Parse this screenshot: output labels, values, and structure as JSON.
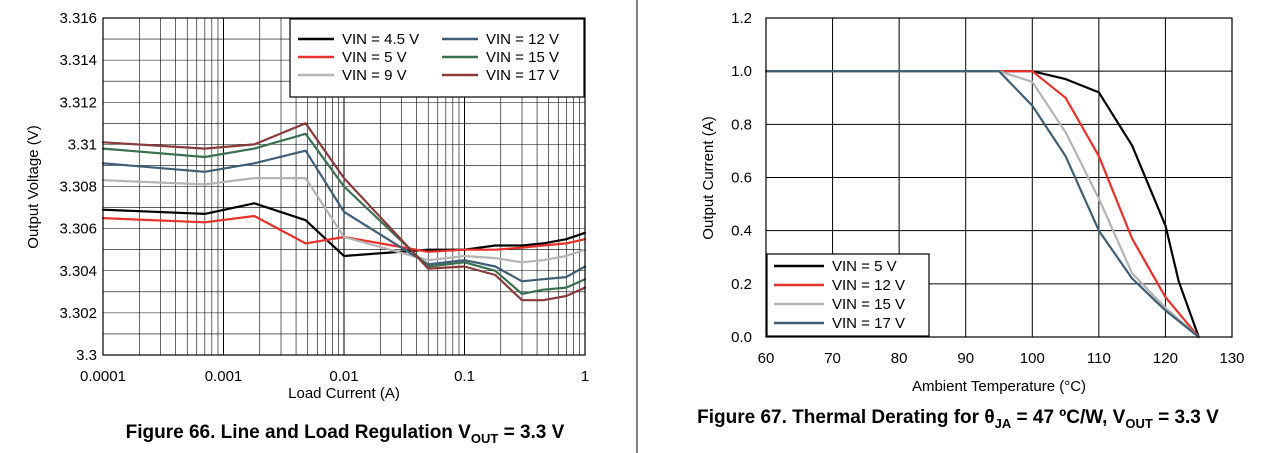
{
  "chart_data": [
    {
      "type": "line",
      "xscale": "log",
      "x": [
        0.0001,
        0.0007,
        0.0018,
        0.0048,
        0.01,
        0.05,
        0.1,
        0.18,
        0.3,
        0.45,
        0.7,
        1.0
      ],
      "series": [
        {
          "name": "VIN = 4.5 V",
          "color": "#000000",
          "values": [
            3.3069,
            3.3067,
            3.3072,
            3.3064,
            3.3047,
            3.305,
            3.305,
            3.3052,
            3.3052,
            3.3053,
            3.3055,
            3.3058
          ]
        },
        {
          "name": "VIN = 5 V",
          "color": "#e8312a",
          "values": [
            3.3065,
            3.3063,
            3.3066,
            3.3053,
            3.3056,
            3.3049,
            3.305,
            3.305,
            3.3051,
            3.3052,
            3.3053,
            3.3055
          ]
        },
        {
          "name": "VIN = 9 V",
          "color": "#b4b4b4",
          "values": [
            3.3083,
            3.3081,
            3.3084,
            3.3084,
            3.3056,
            3.3045,
            3.3047,
            3.3046,
            3.3044,
            3.3045,
            3.3047,
            3.305
          ]
        },
        {
          "name": "VIN = 12 V",
          "color": "#3f5f78",
          "values": [
            3.3091,
            3.3087,
            3.3091,
            3.3097,
            3.3068,
            3.3043,
            3.3045,
            3.3042,
            3.3035,
            3.3036,
            3.3037,
            3.3042
          ]
        },
        {
          "name": "VIN = 15 V",
          "color": "#3a7050",
          "values": [
            3.3098,
            3.3094,
            3.3098,
            3.3105,
            3.308,
            3.3042,
            3.3044,
            3.304,
            3.3029,
            3.3031,
            3.3032,
            3.3036
          ]
        },
        {
          "name": "VIN = 17 V",
          "color": "#8b3a3a",
          "values": [
            3.3101,
            3.3098,
            3.31,
            3.311,
            3.3084,
            3.3041,
            3.3042,
            3.3038,
            3.3026,
            3.3026,
            3.3028,
            3.3032
          ]
        }
      ],
      "xlabel": "Load Current (A)",
      "ylabel": "Output Voltage (V)",
      "xlim": [
        0.0001,
        1
      ],
      "ylim": [
        3.3,
        3.316
      ],
      "xticks": [
        "0.0001",
        "0.001",
        "0.01",
        "0.1",
        "1"
      ],
      "yticks": [
        "3.3",
        "3.302",
        "3.304",
        "3.306",
        "3.308",
        "3.31",
        "3.312",
        "3.314",
        "3.316"
      ],
      "legend": "top-right",
      "caption": {
        "main": "Figure 66. Line and Load Regulation V",
        "sub": "OUT",
        "tail": " = 3.3 V"
      }
    },
    {
      "type": "line",
      "xscale": "linear",
      "series": [
        {
          "name": "VIN = 5 V",
          "color": "#000000",
          "x": [
            60,
            95,
            100,
            105,
            110,
            115,
            120,
            122,
            125
          ],
          "values": [
            1.0,
            1.0,
            1.0,
            0.97,
            0.92,
            0.72,
            0.42,
            0.21,
            0.0
          ]
        },
        {
          "name": "VIN = 12 V",
          "color": "#e8312a",
          "x": [
            60,
            95,
            100,
            105,
            110,
            115,
            120,
            123,
            125
          ],
          "values": [
            1.0,
            1.0,
            1.0,
            0.9,
            0.68,
            0.37,
            0.15,
            0.06,
            0.0
          ]
        },
        {
          "name": "VIN = 15 V",
          "color": "#b4b4b4",
          "x": [
            60,
            95,
            100,
            105,
            110,
            115,
            120,
            125
          ],
          "values": [
            1.0,
            1.0,
            0.96,
            0.77,
            0.52,
            0.24,
            0.11,
            0.0
          ]
        },
        {
          "name": "VIN = 17 V",
          "color": "#3f5f78",
          "x": [
            60,
            90,
            95,
            100,
            105,
            110,
            115,
            120,
            125
          ],
          "values": [
            1.0,
            1.0,
            1.0,
            0.87,
            0.68,
            0.4,
            0.22,
            0.1,
            0.0
          ]
        }
      ],
      "xlabel": "Ambient Temperature (°C)",
      "ylabel": "Output Current (A)",
      "xlim": [
        60,
        130
      ],
      "ylim": [
        0,
        1.2
      ],
      "xticks": [
        "60",
        "70",
        "80",
        "90",
        "100",
        "110",
        "120",
        "130"
      ],
      "yticks": [
        "0.0",
        "0.2",
        "0.4",
        "0.6",
        "0.8",
        "1.0",
        "1.2"
      ],
      "legend": "bottom-left",
      "caption": {
        "main": "Figure 67. Thermal Derating for θ",
        "sub": "JA",
        "tail": " = 47 ºC/W, V",
        "sub2": "OUT",
        "tail2": " = 3.3 V"
      }
    }
  ]
}
